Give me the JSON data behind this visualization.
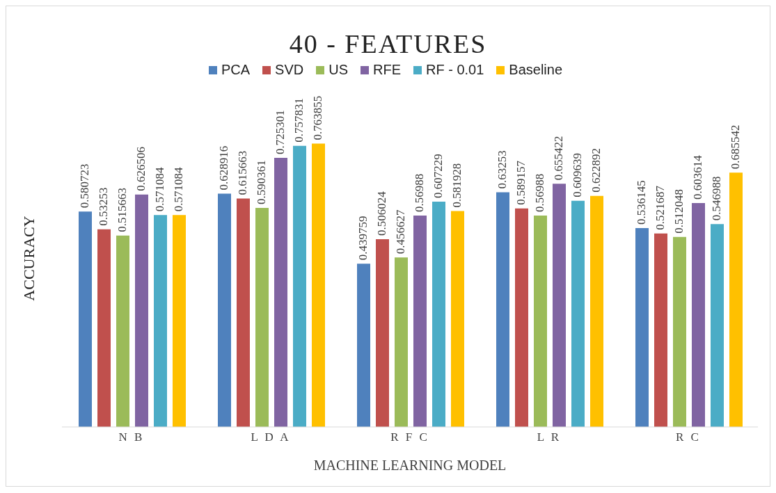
{
  "chart_data": {
    "type": "bar",
    "title": "40 - FEATURES",
    "xlabel": "MACHINE LEARNING MODEL",
    "ylabel": "ACCURACY",
    "categories": [
      "N B",
      "L D A",
      "R F C",
      "L R",
      "R C"
    ],
    "series": [
      {
        "name": "PCA",
        "color": "#4f81bd",
        "values": [
          0.580723,
          0.628916,
          0.439759,
          0.63253,
          0.536145
        ]
      },
      {
        "name": "SVD",
        "color": "#c0504d",
        "values": [
          0.53253,
          0.615663,
          0.506024,
          0.589157,
          0.521687
        ]
      },
      {
        "name": "US",
        "color": "#9bbb59",
        "values": [
          0.515663,
          0.590361,
          0.456627,
          0.56988,
          0.512048
        ]
      },
      {
        "name": "RFE",
        "color": "#8064a2",
        "values": [
          0.626506,
          0.725301,
          0.56988,
          0.655422,
          0.603614
        ]
      },
      {
        "name": "RF - 0.01",
        "color": "#4bacc6",
        "values": [
          0.571084,
          0.757831,
          0.607229,
          0.609639,
          0.546988
        ]
      },
      {
        "name": "Baseline",
        "color": "#ffc000",
        "values": [
          0.571084,
          0.763855,
          0.581928,
          0.622892,
          0.685542
        ]
      }
    ],
    "data_labels": true,
    "legend": "top",
    "grid": false
  }
}
